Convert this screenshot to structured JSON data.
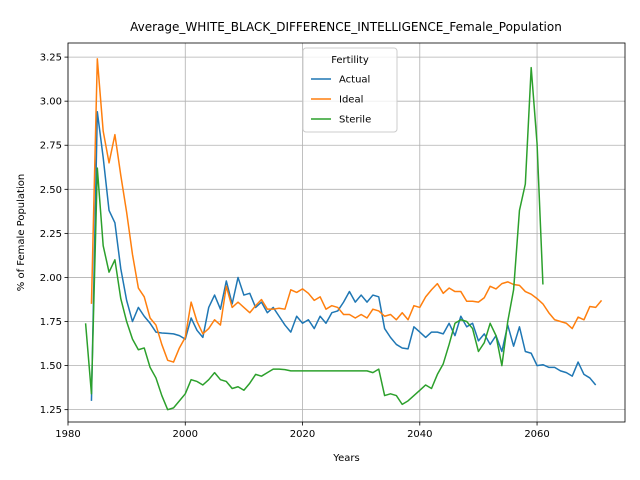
{
  "chart_data": {
    "type": "line",
    "title": "Average_WHITE_BLACK_DIFFERENCE_INTELLIGENCE_Female_Population",
    "xlabel": "Years",
    "ylabel": "% of Female Population",
    "xlim": [
      1980,
      2075
    ],
    "ylim": [
      1.18,
      3.33
    ],
    "xticks": [
      1980,
      2000,
      2020,
      2040,
      2060
    ],
    "yticks": [
      1.25,
      1.5,
      1.75,
      2.0,
      2.25,
      2.5,
      2.75,
      3.0,
      3.25
    ],
    "grid": true,
    "legend": {
      "title": "Fertility",
      "position": "upper-center"
    },
    "series": [
      {
        "name": "Actual",
        "color": "#1f77b4",
        "points": [
          [
            1984,
            1.3
          ],
          [
            1985,
            2.94
          ],
          [
            1986,
            2.68
          ],
          [
            1987,
            2.38
          ],
          [
            1988,
            2.31
          ],
          [
            1989,
            2.05
          ],
          [
            1990,
            1.87
          ],
          [
            1991,
            1.75
          ],
          [
            1992,
            1.83
          ],
          [
            1993,
            1.78
          ],
          [
            1994,
            1.74
          ],
          [
            1995,
            1.69
          ],
          [
            1996,
            1.685
          ],
          [
            1997,
            1.683
          ],
          [
            1998,
            1.68
          ],
          [
            1999,
            1.67
          ],
          [
            2000,
            1.65
          ],
          [
            2001,
            1.77
          ],
          [
            2002,
            1.7
          ],
          [
            2003,
            1.66
          ],
          [
            2004,
            1.83
          ],
          [
            2005,
            1.9
          ],
          [
            2006,
            1.82
          ],
          [
            2007,
            1.98
          ],
          [
            2008,
            1.85
          ],
          [
            2009,
            2.0
          ],
          [
            2010,
            1.9
          ],
          [
            2011,
            1.91
          ],
          [
            2012,
            1.83
          ],
          [
            2013,
            1.86
          ],
          [
            2014,
            1.8
          ],
          [
            2015,
            1.83
          ],
          [
            2016,
            1.78
          ],
          [
            2017,
            1.73
          ],
          [
            2018,
            1.69
          ],
          [
            2019,
            1.78
          ],
          [
            2020,
            1.74
          ],
          [
            2021,
            1.76
          ],
          [
            2022,
            1.71
          ],
          [
            2023,
            1.78
          ],
          [
            2024,
            1.74
          ],
          [
            2025,
            1.8
          ],
          [
            2026,
            1.81
          ],
          [
            2027,
            1.86
          ],
          [
            2028,
            1.92
          ],
          [
            2029,
            1.86
          ],
          [
            2030,
            1.9
          ],
          [
            2031,
            1.86
          ],
          [
            2032,
            1.9
          ],
          [
            2033,
            1.89
          ],
          [
            2034,
            1.71
          ],
          [
            2035,
            1.66
          ],
          [
            2036,
            1.62
          ],
          [
            2037,
            1.6
          ],
          [
            2038,
            1.595
          ],
          [
            2039,
            1.72
          ],
          [
            2040,
            1.69
          ],
          [
            2041,
            1.66
          ],
          [
            2042,
            1.69
          ],
          [
            2043,
            1.69
          ],
          [
            2044,
            1.68
          ],
          [
            2045,
            1.74
          ],
          [
            2046,
            1.67
          ],
          [
            2047,
            1.78
          ],
          [
            2048,
            1.72
          ],
          [
            2049,
            1.74
          ],
          [
            2050,
            1.64
          ],
          [
            2051,
            1.68
          ],
          [
            2052,
            1.62
          ],
          [
            2053,
            1.67
          ],
          [
            2054,
            1.58
          ],
          [
            2055,
            1.73
          ],
          [
            2056,
            1.61
          ],
          [
            2057,
            1.72
          ],
          [
            2058,
            1.58
          ],
          [
            2059,
            1.57
          ],
          [
            2060,
            1.5
          ],
          [
            2061,
            1.505
          ],
          [
            2062,
            1.49
          ],
          [
            2063,
            1.49
          ],
          [
            2064,
            1.47
          ],
          [
            2065,
            1.46
          ],
          [
            2066,
            1.44
          ],
          [
            2067,
            1.52
          ],
          [
            2068,
            1.45
          ],
          [
            2069,
            1.43
          ],
          [
            2070,
            1.39
          ]
        ]
      },
      {
        "name": "Ideal",
        "color": "#ff7f0e",
        "points": [
          [
            1984,
            1.85
          ],
          [
            1985,
            3.24
          ],
          [
            1986,
            2.83
          ],
          [
            1987,
            2.65
          ],
          [
            1988,
            2.81
          ],
          [
            1989,
            2.58
          ],
          [
            1990,
            2.37
          ],
          [
            1991,
            2.13
          ],
          [
            1992,
            1.94
          ],
          [
            1993,
            1.89
          ],
          [
            1994,
            1.77
          ],
          [
            1995,
            1.73
          ],
          [
            1996,
            1.62
          ],
          [
            1997,
            1.53
          ],
          [
            1998,
            1.52
          ],
          [
            1999,
            1.6
          ],
          [
            2000,
            1.66
          ],
          [
            2001,
            1.86
          ],
          [
            2002,
            1.75
          ],
          [
            2003,
            1.68
          ],
          [
            2004,
            1.71
          ],
          [
            2005,
            1.76
          ],
          [
            2006,
            1.73
          ],
          [
            2007,
            1.95
          ],
          [
            2008,
            1.83
          ],
          [
            2009,
            1.86
          ],
          [
            2010,
            1.83
          ],
          [
            2011,
            1.8
          ],
          [
            2012,
            1.84
          ],
          [
            2013,
            1.875
          ],
          [
            2014,
            1.82
          ],
          [
            2015,
            1.82
          ],
          [
            2016,
            1.825
          ],
          [
            2017,
            1.82
          ],
          [
            2018,
            1.93
          ],
          [
            2019,
            1.915
          ],
          [
            2020,
            1.935
          ],
          [
            2021,
            1.91
          ],
          [
            2022,
            1.87
          ],
          [
            2023,
            1.89
          ],
          [
            2024,
            1.82
          ],
          [
            2025,
            1.84
          ],
          [
            2026,
            1.83
          ],
          [
            2027,
            1.79
          ],
          [
            2028,
            1.79
          ],
          [
            2029,
            1.77
          ],
          [
            2030,
            1.79
          ],
          [
            2031,
            1.77
          ],
          [
            2032,
            1.82
          ],
          [
            2033,
            1.81
          ],
          [
            2034,
            1.78
          ],
          [
            2035,
            1.79
          ],
          [
            2036,
            1.76
          ],
          [
            2037,
            1.8
          ],
          [
            2038,
            1.76
          ],
          [
            2039,
            1.84
          ],
          [
            2040,
            1.83
          ],
          [
            2041,
            1.89
          ],
          [
            2042,
            1.93
          ],
          [
            2043,
            1.965
          ],
          [
            2044,
            1.91
          ],
          [
            2045,
            1.94
          ],
          [
            2046,
            1.92
          ],
          [
            2047,
            1.92
          ],
          [
            2048,
            1.865
          ],
          [
            2049,
            1.865
          ],
          [
            2050,
            1.86
          ],
          [
            2051,
            1.885
          ],
          [
            2052,
            1.95
          ],
          [
            2053,
            1.935
          ],
          [
            2054,
            1.965
          ],
          [
            2055,
            1.975
          ],
          [
            2056,
            1.96
          ],
          [
            2057,
            1.955
          ],
          [
            2058,
            1.92
          ],
          [
            2059,
            1.905
          ],
          [
            2060,
            1.88
          ],
          [
            2061,
            1.85
          ],
          [
            2062,
            1.8
          ],
          [
            2063,
            1.76
          ],
          [
            2064,
            1.75
          ],
          [
            2065,
            1.74
          ],
          [
            2066,
            1.71
          ],
          [
            2067,
            1.775
          ],
          [
            2068,
            1.76
          ],
          [
            2069,
            1.835
          ],
          [
            2070,
            1.83
          ],
          [
            2071,
            1.87
          ]
        ]
      },
      {
        "name": "Sterile",
        "color": "#2ca02c",
        "points": [
          [
            1983,
            1.74
          ],
          [
            1984,
            1.34
          ],
          [
            1985,
            2.62
          ],
          [
            1986,
            2.18
          ],
          [
            1987,
            2.03
          ],
          [
            1988,
            2.1
          ],
          [
            1989,
            1.88
          ],
          [
            1990,
            1.75
          ],
          [
            1991,
            1.65
          ],
          [
            1992,
            1.59
          ],
          [
            1993,
            1.6
          ],
          [
            1994,
            1.49
          ],
          [
            1995,
            1.43
          ],
          [
            1996,
            1.33
          ],
          [
            1997,
            1.25
          ],
          [
            1998,
            1.26
          ],
          [
            1999,
            1.3
          ],
          [
            2000,
            1.34
          ],
          [
            2001,
            1.42
          ],
          [
            2002,
            1.41
          ],
          [
            2003,
            1.39
          ],
          [
            2004,
            1.42
          ],
          [
            2005,
            1.46
          ],
          [
            2006,
            1.42
          ],
          [
            2007,
            1.41
          ],
          [
            2008,
            1.37
          ],
          [
            2009,
            1.38
          ],
          [
            2010,
            1.36
          ],
          [
            2011,
            1.4
          ],
          [
            2012,
            1.45
          ],
          [
            2013,
            1.44
          ],
          [
            2014,
            1.46
          ],
          [
            2015,
            1.48
          ],
          [
            2016,
            1.48
          ],
          [
            2017,
            1.477
          ],
          [
            2018,
            1.47
          ],
          [
            2019,
            1.47
          ],
          [
            2020,
            1.47
          ],
          [
            2021,
            1.47
          ],
          [
            2022,
            1.47
          ],
          [
            2023,
            1.47
          ],
          [
            2024,
            1.47
          ],
          [
            2025,
            1.47
          ],
          [
            2026,
            1.47
          ],
          [
            2027,
            1.47
          ],
          [
            2028,
            1.47
          ],
          [
            2029,
            1.47
          ],
          [
            2030,
            1.47
          ],
          [
            2031,
            1.47
          ],
          [
            2032,
            1.46
          ],
          [
            2033,
            1.48
          ],
          [
            2034,
            1.33
          ],
          [
            2035,
            1.34
          ],
          [
            2036,
            1.33
          ],
          [
            2037,
            1.28
          ],
          [
            2038,
            1.3
          ],
          [
            2039,
            1.33
          ],
          [
            2040,
            1.36
          ],
          [
            2041,
            1.39
          ],
          [
            2042,
            1.37
          ],
          [
            2043,
            1.45
          ],
          [
            2044,
            1.51
          ],
          [
            2045,
            1.62
          ],
          [
            2046,
            1.74
          ],
          [
            2047,
            1.76
          ],
          [
            2048,
            1.75
          ],
          [
            2049,
            1.71
          ],
          [
            2050,
            1.58
          ],
          [
            2051,
            1.63
          ],
          [
            2052,
            1.74
          ],
          [
            2053,
            1.67
          ],
          [
            2054,
            1.5
          ],
          [
            2055,
            1.75
          ],
          [
            2056,
            1.93
          ],
          [
            2057,
            2.38
          ],
          [
            2058,
            2.53
          ],
          [
            2059,
            3.19
          ],
          [
            2060,
            2.76
          ],
          [
            2061,
            1.96
          ]
        ]
      }
    ]
  }
}
